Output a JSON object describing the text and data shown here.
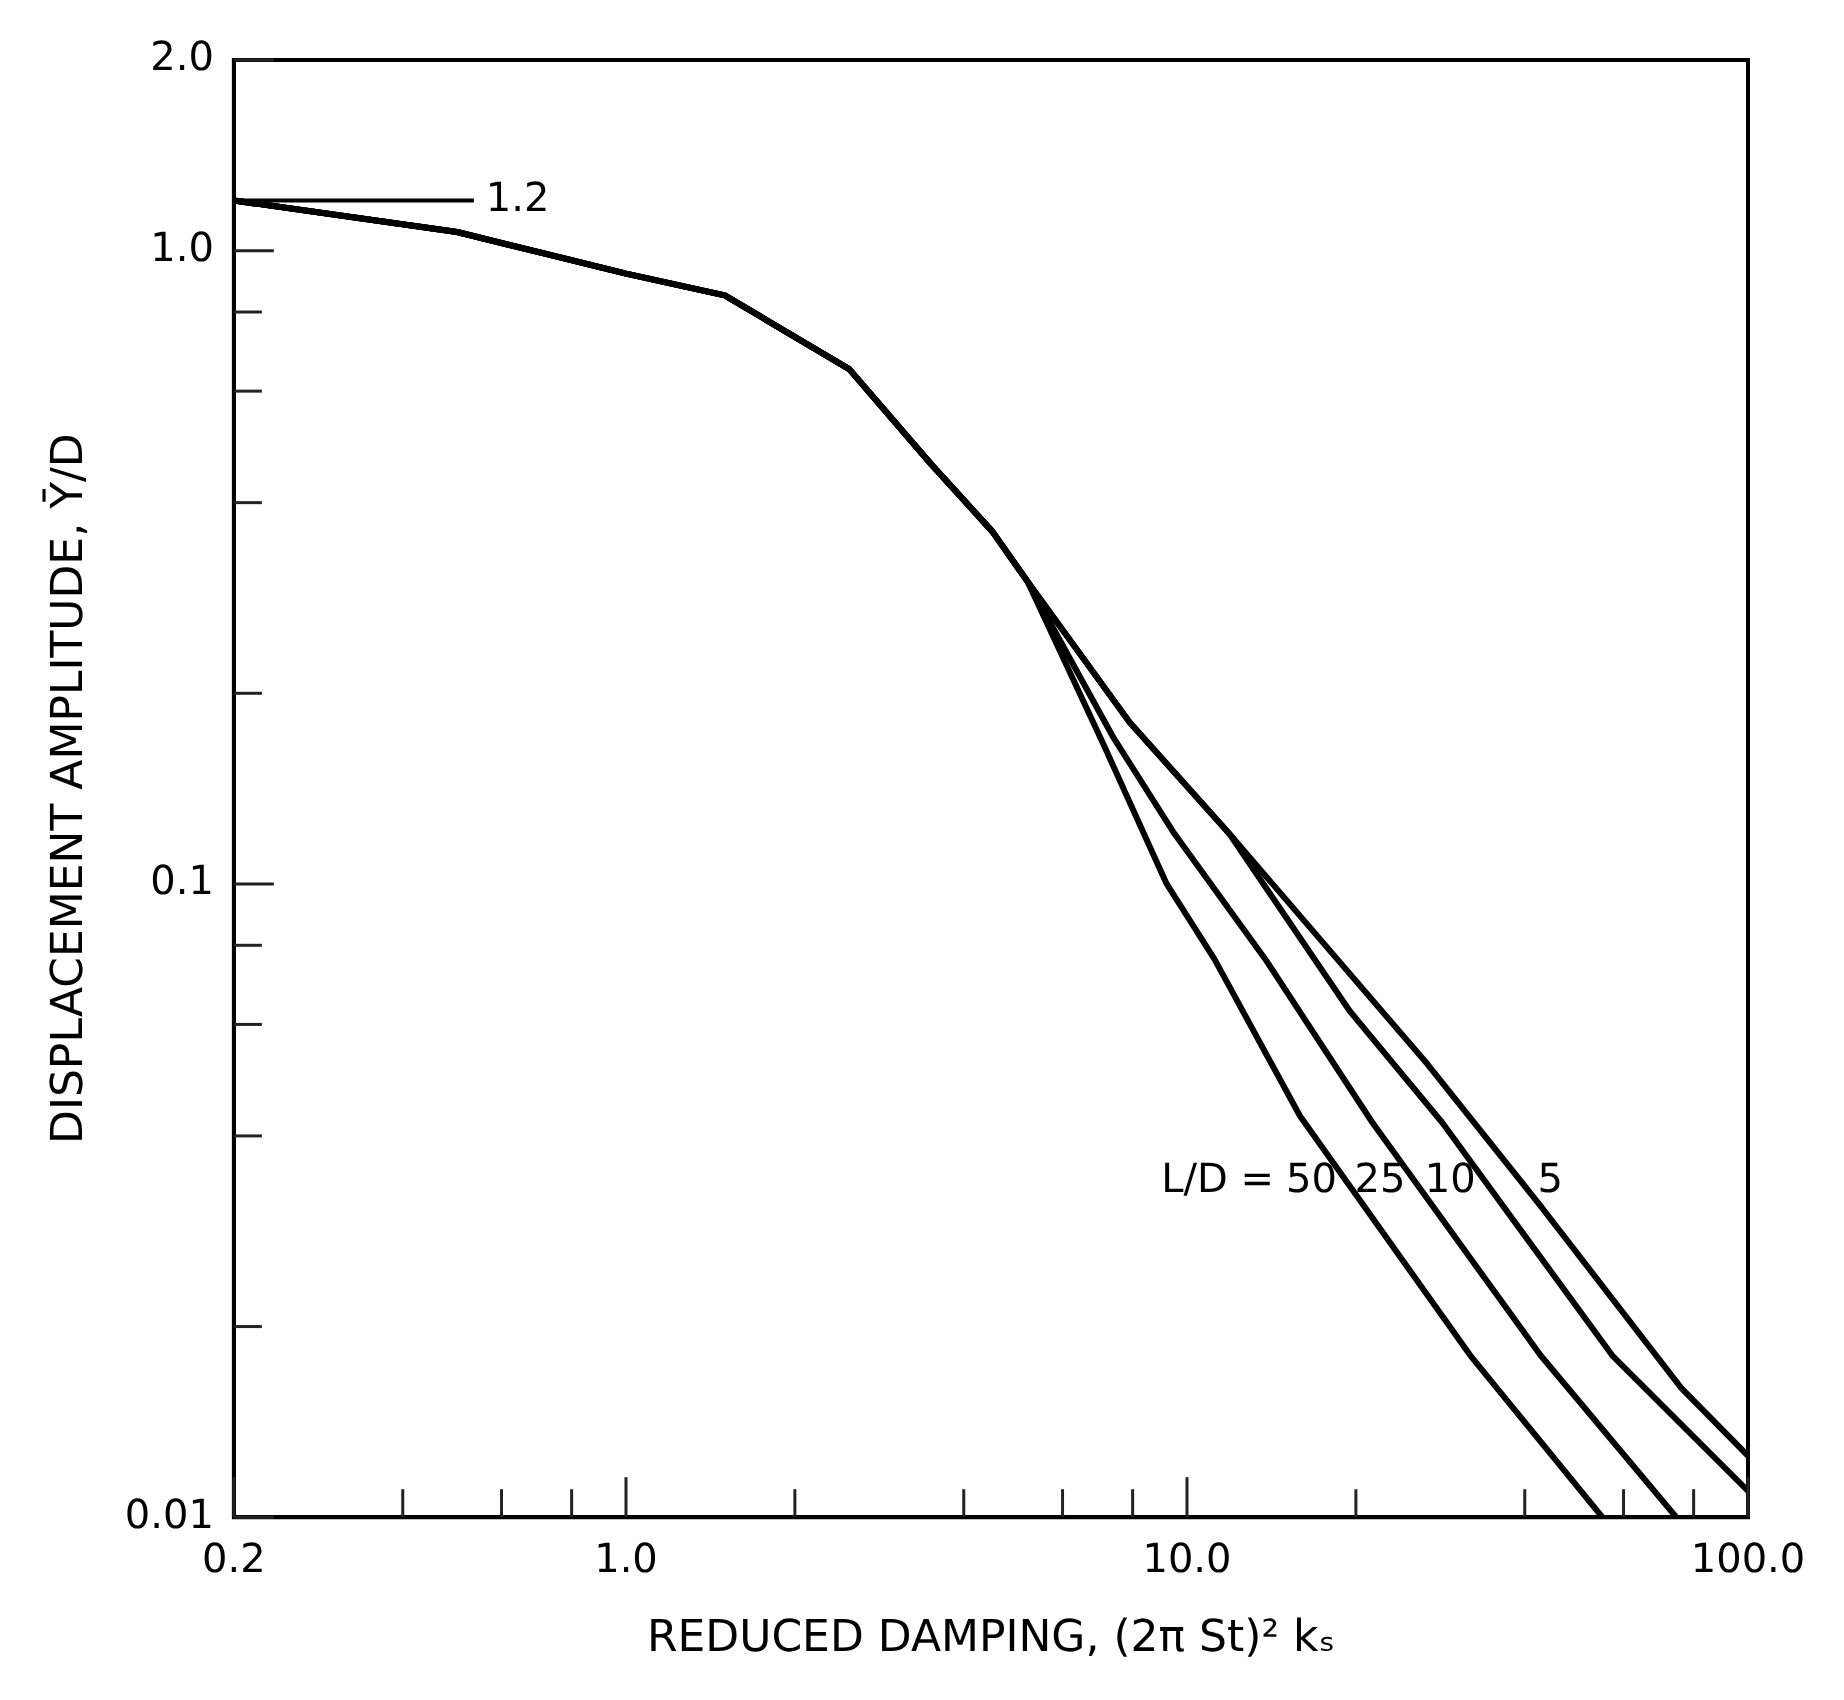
{
  "chart_data": {
    "type": "line",
    "xlabel": "REDUCED DAMPING, (2π St)² kₛ",
    "ylabel": "DISPLACEMENT AMPLITUDE, Ȳ/D",
    "log": "xy",
    "xlim": [
      0.2,
      100
    ],
    "ylim": [
      0.01,
      2
    ],
    "xticks": [
      {
        "value": 0.2,
        "label": "0.2"
      },
      {
        "value": 0.4,
        "label": null
      },
      {
        "value": 0.6,
        "label": null
      },
      {
        "value": 0.8,
        "label": null
      },
      {
        "value": 1,
        "label": "1.0"
      },
      {
        "value": 2,
        "label": null
      },
      {
        "value": 4,
        "label": null
      },
      {
        "value": 6,
        "label": null
      },
      {
        "value": 8,
        "label": null
      },
      {
        "value": 10,
        "label": "10.0"
      },
      {
        "value": 20,
        "label": null
      },
      {
        "value": 40,
        "label": null
      },
      {
        "value": 60,
        "label": null
      },
      {
        "value": 80,
        "label": null
      },
      {
        "value": 100,
        "label": "100.0"
      }
    ],
    "yticks": [
      0.01,
      {
        "value": 0.02,
        "label": null
      },
      {
        "value": 0.04,
        "label": null
      },
      {
        "value": 0.06,
        "label": null
      },
      {
        "value": 0.08,
        "label": null
      },
      0.1,
      {
        "value": 0.2,
        "label": null
      },
      {
        "value": 0.4,
        "label": null
      },
      {
        "value": 0.6,
        "label": null
      },
      {
        "value": 0.8,
        "label": null
      },
      {
        "value": 1,
        "label": "1.0"
      },
      {
        "value": 2,
        "label": "2.0"
      }
    ],
    "grid": false,
    "legend": "right",
    "marker": "none",
    "line_style": "solid",
    "annotations": [
      {
        "text": "1.2",
        "x": 0.2,
        "y": 1.2
      },
      "L/D ="
    ],
    "series": [
      {
        "name": "50",
        "color": "#000000",
        "x": [
          0.2,
          0.5,
          1,
          1.5,
          2.5,
          3.5,
          4.5,
          5.2,
          7.1,
          9.2,
          11.2,
          15.9,
          32,
          55
        ],
        "values": [
          1.2,
          1.07,
          0.92,
          0.85,
          0.65,
          0.46,
          0.36,
          0.3,
          0.166,
          0.1,
          0.076,
          0.043,
          0.018,
          0.01
        ]
      },
      {
        "name": "25",
        "color": "#000000",
        "x": [
          0.2,
          0.5,
          1,
          1.5,
          2.5,
          3.5,
          4.5,
          5.2,
          7.4,
          9.5,
          13.8,
          21.4,
          42.7,
          74.5
        ],
        "values": [
          1.2,
          1.07,
          0.92,
          0.85,
          0.65,
          0.46,
          0.36,
          0.3,
          0.17,
          0.12,
          0.076,
          0.042,
          0.018,
          0.01
        ]
      },
      {
        "name": "10",
        "color": "#000000",
        "x": [
          0.2,
          0.5,
          1,
          1.5,
          2.5,
          3.5,
          4.5,
          5.2,
          7.9,
          11.9,
          19.5,
          28.5,
          57.3,
          100
        ],
        "values": [
          1.2,
          1.07,
          0.92,
          0.85,
          0.65,
          0.46,
          0.36,
          0.3,
          0.18,
          0.12,
          0.063,
          0.042,
          0.018,
          0.011
        ]
      },
      {
        "name": "5",
        "color": "#000000",
        "x": [
          0.2,
          0.5,
          1,
          1.5,
          2.5,
          3.5,
          4.5,
          5.2,
          7.9,
          11.9,
          26.8,
          42.7,
          76,
          100
        ],
        "values": [
          1.2,
          1.07,
          0.92,
          0.85,
          0.65,
          0.46,
          0.36,
          0.3,
          0.18,
          0.12,
          0.052,
          0.031,
          0.016,
          0.0125
        ]
      }
    ]
  }
}
